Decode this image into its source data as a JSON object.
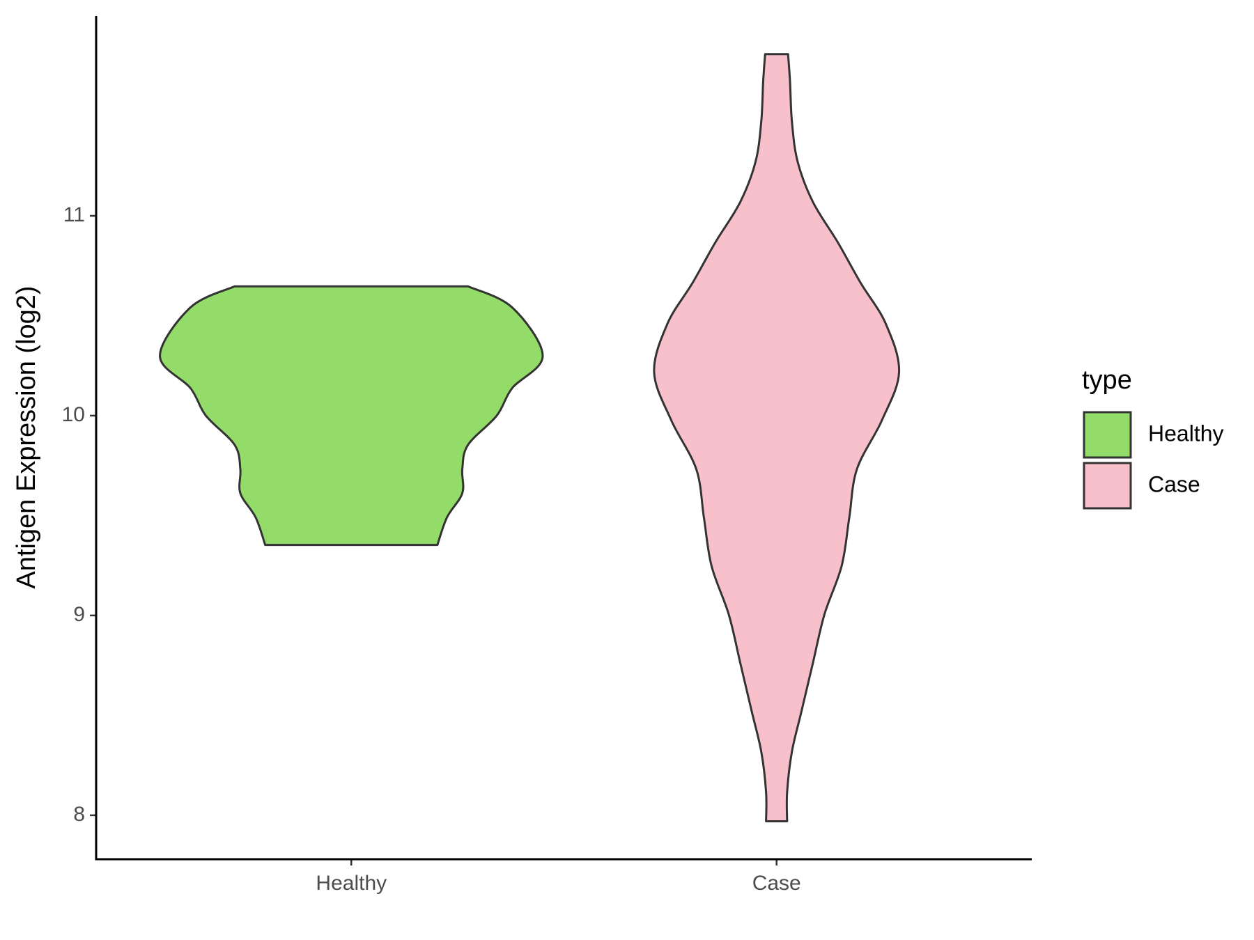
{
  "chart_data": {
    "type": "violin",
    "y_label": "Antigen Expression (log2)",
    "categories": [
      "Healthy",
      "Case"
    ],
    "ylim": [
      7.78,
      12.0
    ],
    "yticks": [
      8,
      9,
      10,
      11
    ],
    "legend_title": "type",
    "legend_position": "right",
    "series": [
      {
        "name": "Healthy",
        "color": "#93dc6a",
        "y": [
          10.647,
          10.542,
          10.299,
          10.137,
          10.0,
          9.854,
          9.733,
          9.612,
          9.491,
          9.353
        ],
        "widths": [
          0.61,
          0.84,
          1.0,
          0.84,
          0.76,
          0.61,
          0.58,
          0.58,
          0.5,
          0.45
        ]
      },
      {
        "name": "Case",
        "color": "#f7c0cb",
        "y": [
          11.809,
          11.675,
          11.473,
          11.271,
          11.069,
          10.867,
          10.663,
          10.461,
          10.218,
          9.976,
          9.733,
          9.491,
          9.248,
          9.005,
          8.763,
          8.52,
          8.318,
          8.116,
          7.97
        ],
        "widths": [
          0.06,
          0.07,
          0.08,
          0.11,
          0.19,
          0.32,
          0.44,
          0.57,
          0.64,
          0.55,
          0.42,
          0.38,
          0.34,
          0.25,
          0.19,
          0.13,
          0.08,
          0.055,
          0.055
        ]
      }
    ]
  }
}
